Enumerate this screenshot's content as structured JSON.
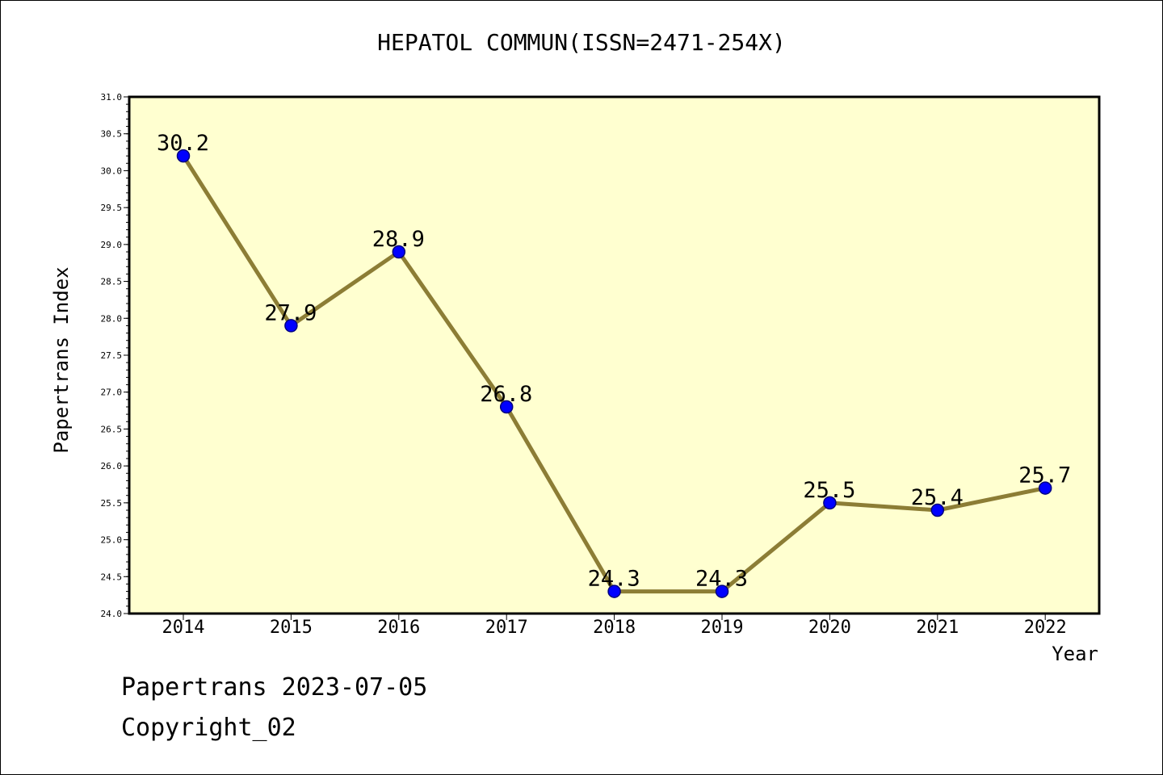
{
  "chart_data": {
    "type": "line",
    "title": "HEPATOL COMMUN(ISSN=2471-254X)",
    "xlabel": "Year",
    "ylabel": "Papertrans Index",
    "categories": [
      "2014",
      "2015",
      "2016",
      "2017",
      "2018",
      "2019",
      "2020",
      "2021",
      "2022"
    ],
    "series": [
      {
        "values": [
          30.2,
          27.9,
          28.9,
          26.8,
          24.3,
          24.3,
          25.5,
          25.4,
          25.7
        ]
      }
    ],
    "data_labels": [
      "30.2",
      "27.9",
      "28.9",
      "26.8",
      "24.3",
      "24.3",
      "25.5",
      "25.4",
      "25.7"
    ],
    "ylim": [
      24.0,
      31.0
    ],
    "yticks": [
      "24.0",
      "24.5",
      "25.0",
      "25.5",
      "26.0",
      "26.5",
      "27.0",
      "27.5",
      "28.0",
      "28.5",
      "29.0",
      "29.5",
      "30.0",
      "30.5",
      "31.0"
    ],
    "grid": false,
    "colors": {
      "plot_background": "#ffffd0",
      "line": "#8c7d35",
      "marker": "#0000ff",
      "marker_edge": "#000080"
    }
  },
  "footer": {
    "date": "Papertrans 2023-07-05",
    "copyright": "Copyright_02"
  }
}
